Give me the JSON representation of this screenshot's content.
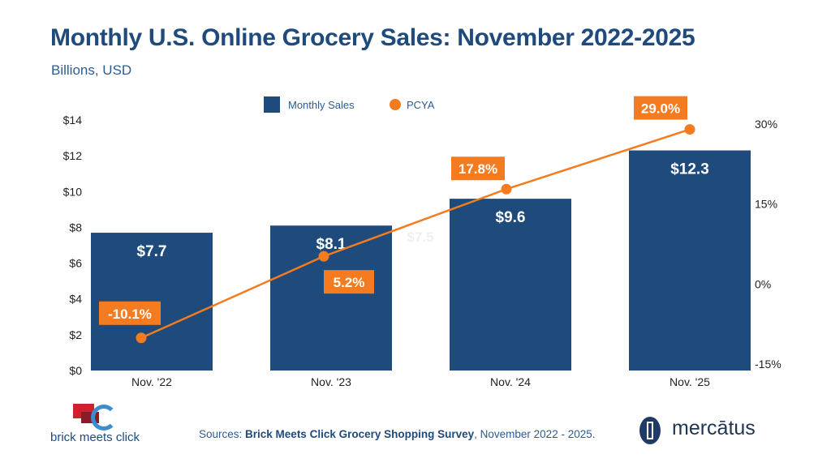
{
  "chart_data": {
    "type": "bar+line",
    "title": "Monthly U.S. Online Grocery Sales: November 2022-2025",
    "subtitle": "Billions, USD",
    "categories": [
      "Nov. '22",
      "Nov. '23",
      "Nov. '24",
      "Nov. '25"
    ],
    "series": [
      {
        "name": "Monthly Sales",
        "type": "bar",
        "axis": "left",
        "values": [
          7.7,
          8.1,
          9.6,
          12.3
        ],
        "labels": [
          "$7.7",
          "$8.1",
          "$9.6",
          "$12.3"
        ],
        "color": "#1f4a7c"
      },
      {
        "name": "PCYA",
        "type": "line",
        "axis": "right",
        "values": [
          -10.1,
          5.2,
          17.8,
          29.0
        ],
        "labels": [
          "-10.1%",
          "5.2%",
          "17.8%",
          "29.0%"
        ],
        "color": "#f47b20"
      }
    ],
    "left_axis": {
      "ylim": [
        0,
        14
      ],
      "ticks": [
        "$0",
        "$2",
        "$4",
        "$6",
        "$8",
        "$10",
        "$12",
        "$14"
      ]
    },
    "right_axis": {
      "ylim": [
        -15,
        30
      ],
      "ticks": [
        "-15%",
        "0%",
        "15%",
        "30%"
      ]
    },
    "ghost_label": "$7.5",
    "legend": "top-center",
    "grid": false
  },
  "footer": {
    "sources_prefix": "Sources: ",
    "sources_bold": "Brick Meets Click Grocery Shopping Survey",
    "sources_suffix": ", November 2022 - 2025.",
    "logo_left": "brick meets click",
    "logo_right": "mercātus"
  }
}
